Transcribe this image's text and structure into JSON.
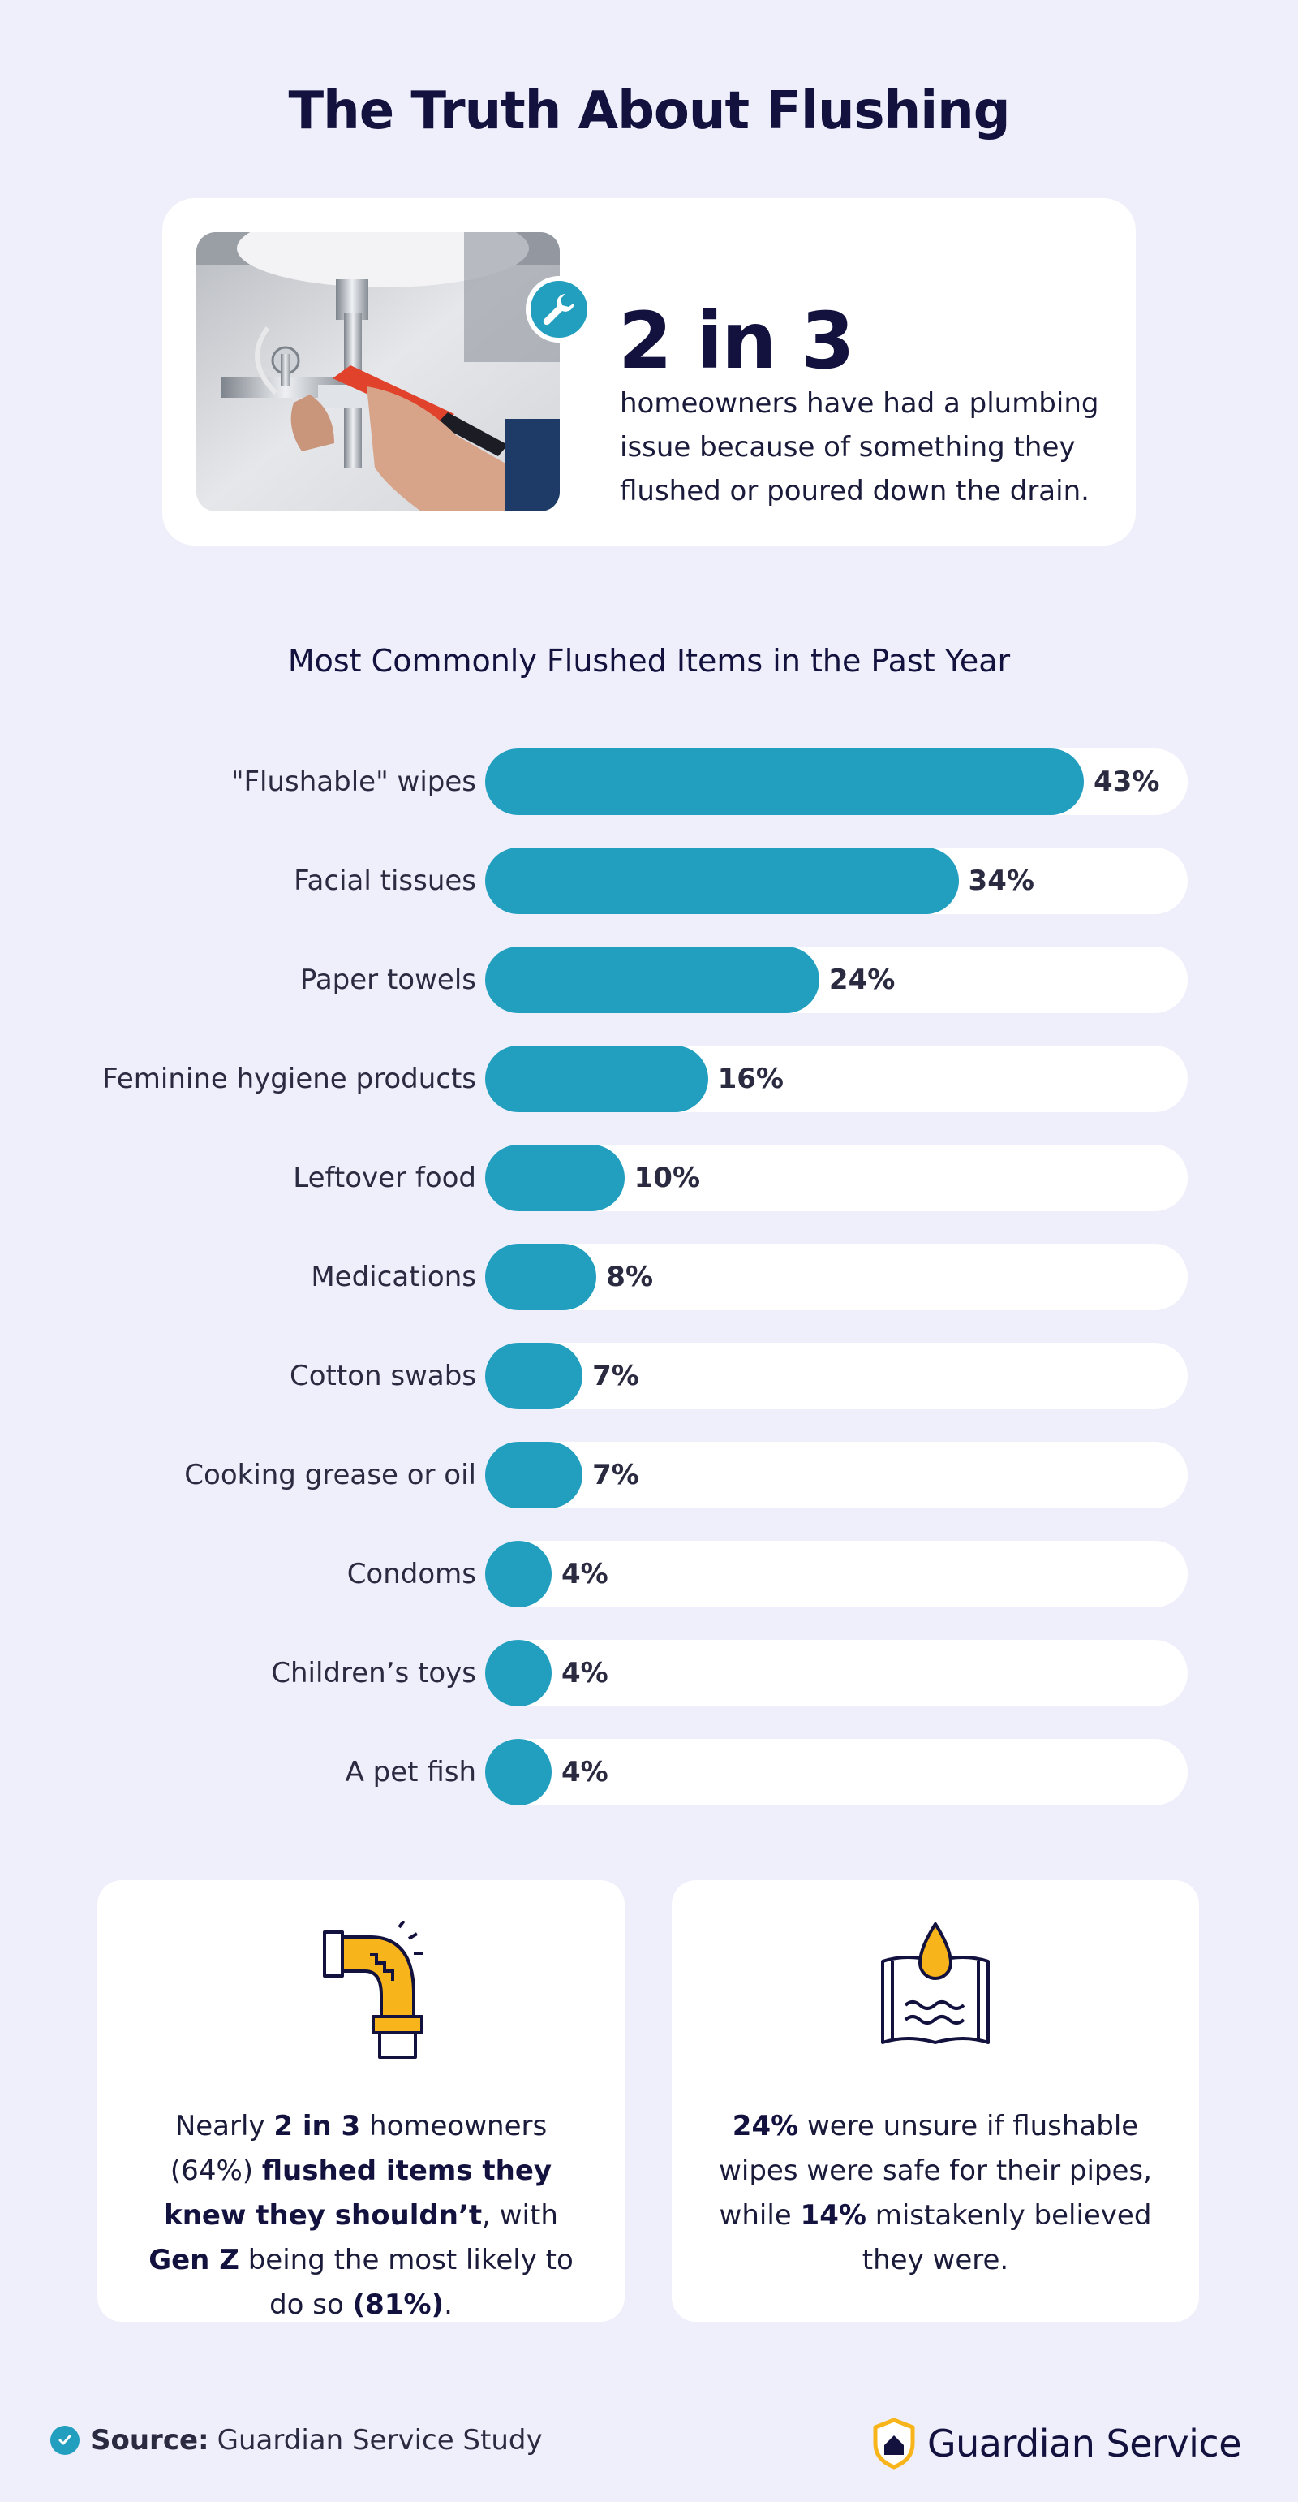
{
  "title": "The Truth About Flushing",
  "hero": {
    "stat": "2 in 3",
    "text": "homeowners have had a plumbing issue because of something they flushed or poured down the drain.",
    "photo_icon": "wrench-icon"
  },
  "chart_data": {
    "type": "bar",
    "orientation": "horizontal",
    "title": "Most Commonly Flushed Items in the Past Year",
    "categories": [
      "\"Flushable\" wipes",
      "Facial tissues",
      "Paper towels",
      "Feminine hygiene products",
      "Leftover food",
      "Medications",
      "Cotton swabs",
      "Cooking grease or oil",
      "Condoms",
      "Children’s toys",
      "A pet fish"
    ],
    "values": [
      43,
      34,
      24,
      16,
      10,
      8,
      7,
      7,
      4,
      4,
      4
    ],
    "value_labels": [
      "43%",
      "34%",
      "24%",
      "16%",
      "10%",
      "8%",
      "7%",
      "7%",
      "4%",
      "4%",
      "4%"
    ],
    "unit": "%",
    "xlim": [
      0,
      100
    ],
    "grid": false,
    "bar_color": "#229FBF",
    "track_color": "#FFFFFF"
  },
  "facts": {
    "left": {
      "icon": "leaking-pipe-icon",
      "parts": [
        "Nearly ",
        "2 in 3",
        " homeowners (64%) ",
        "flushed items they knew they shouldn’t",
        ", with ",
        "Gen Z",
        " being the most likely to do so ",
        "(81%)",
        "."
      ]
    },
    "right": {
      "icon": "wet-wipe-icon",
      "parts": [
        "24%",
        " were unsure if flushable wipes were safe for their pipes, while ",
        "14%",
        " mistakenly believed they were."
      ]
    }
  },
  "footer": {
    "source_label": "Source:",
    "source_text": "Guardian Service Study",
    "brand": "Guardian Service"
  },
  "colors": {
    "background": "#EFEEFB",
    "accent": "#229FBF",
    "title": "#13123F",
    "icon_yellow": "#F7B51B"
  }
}
